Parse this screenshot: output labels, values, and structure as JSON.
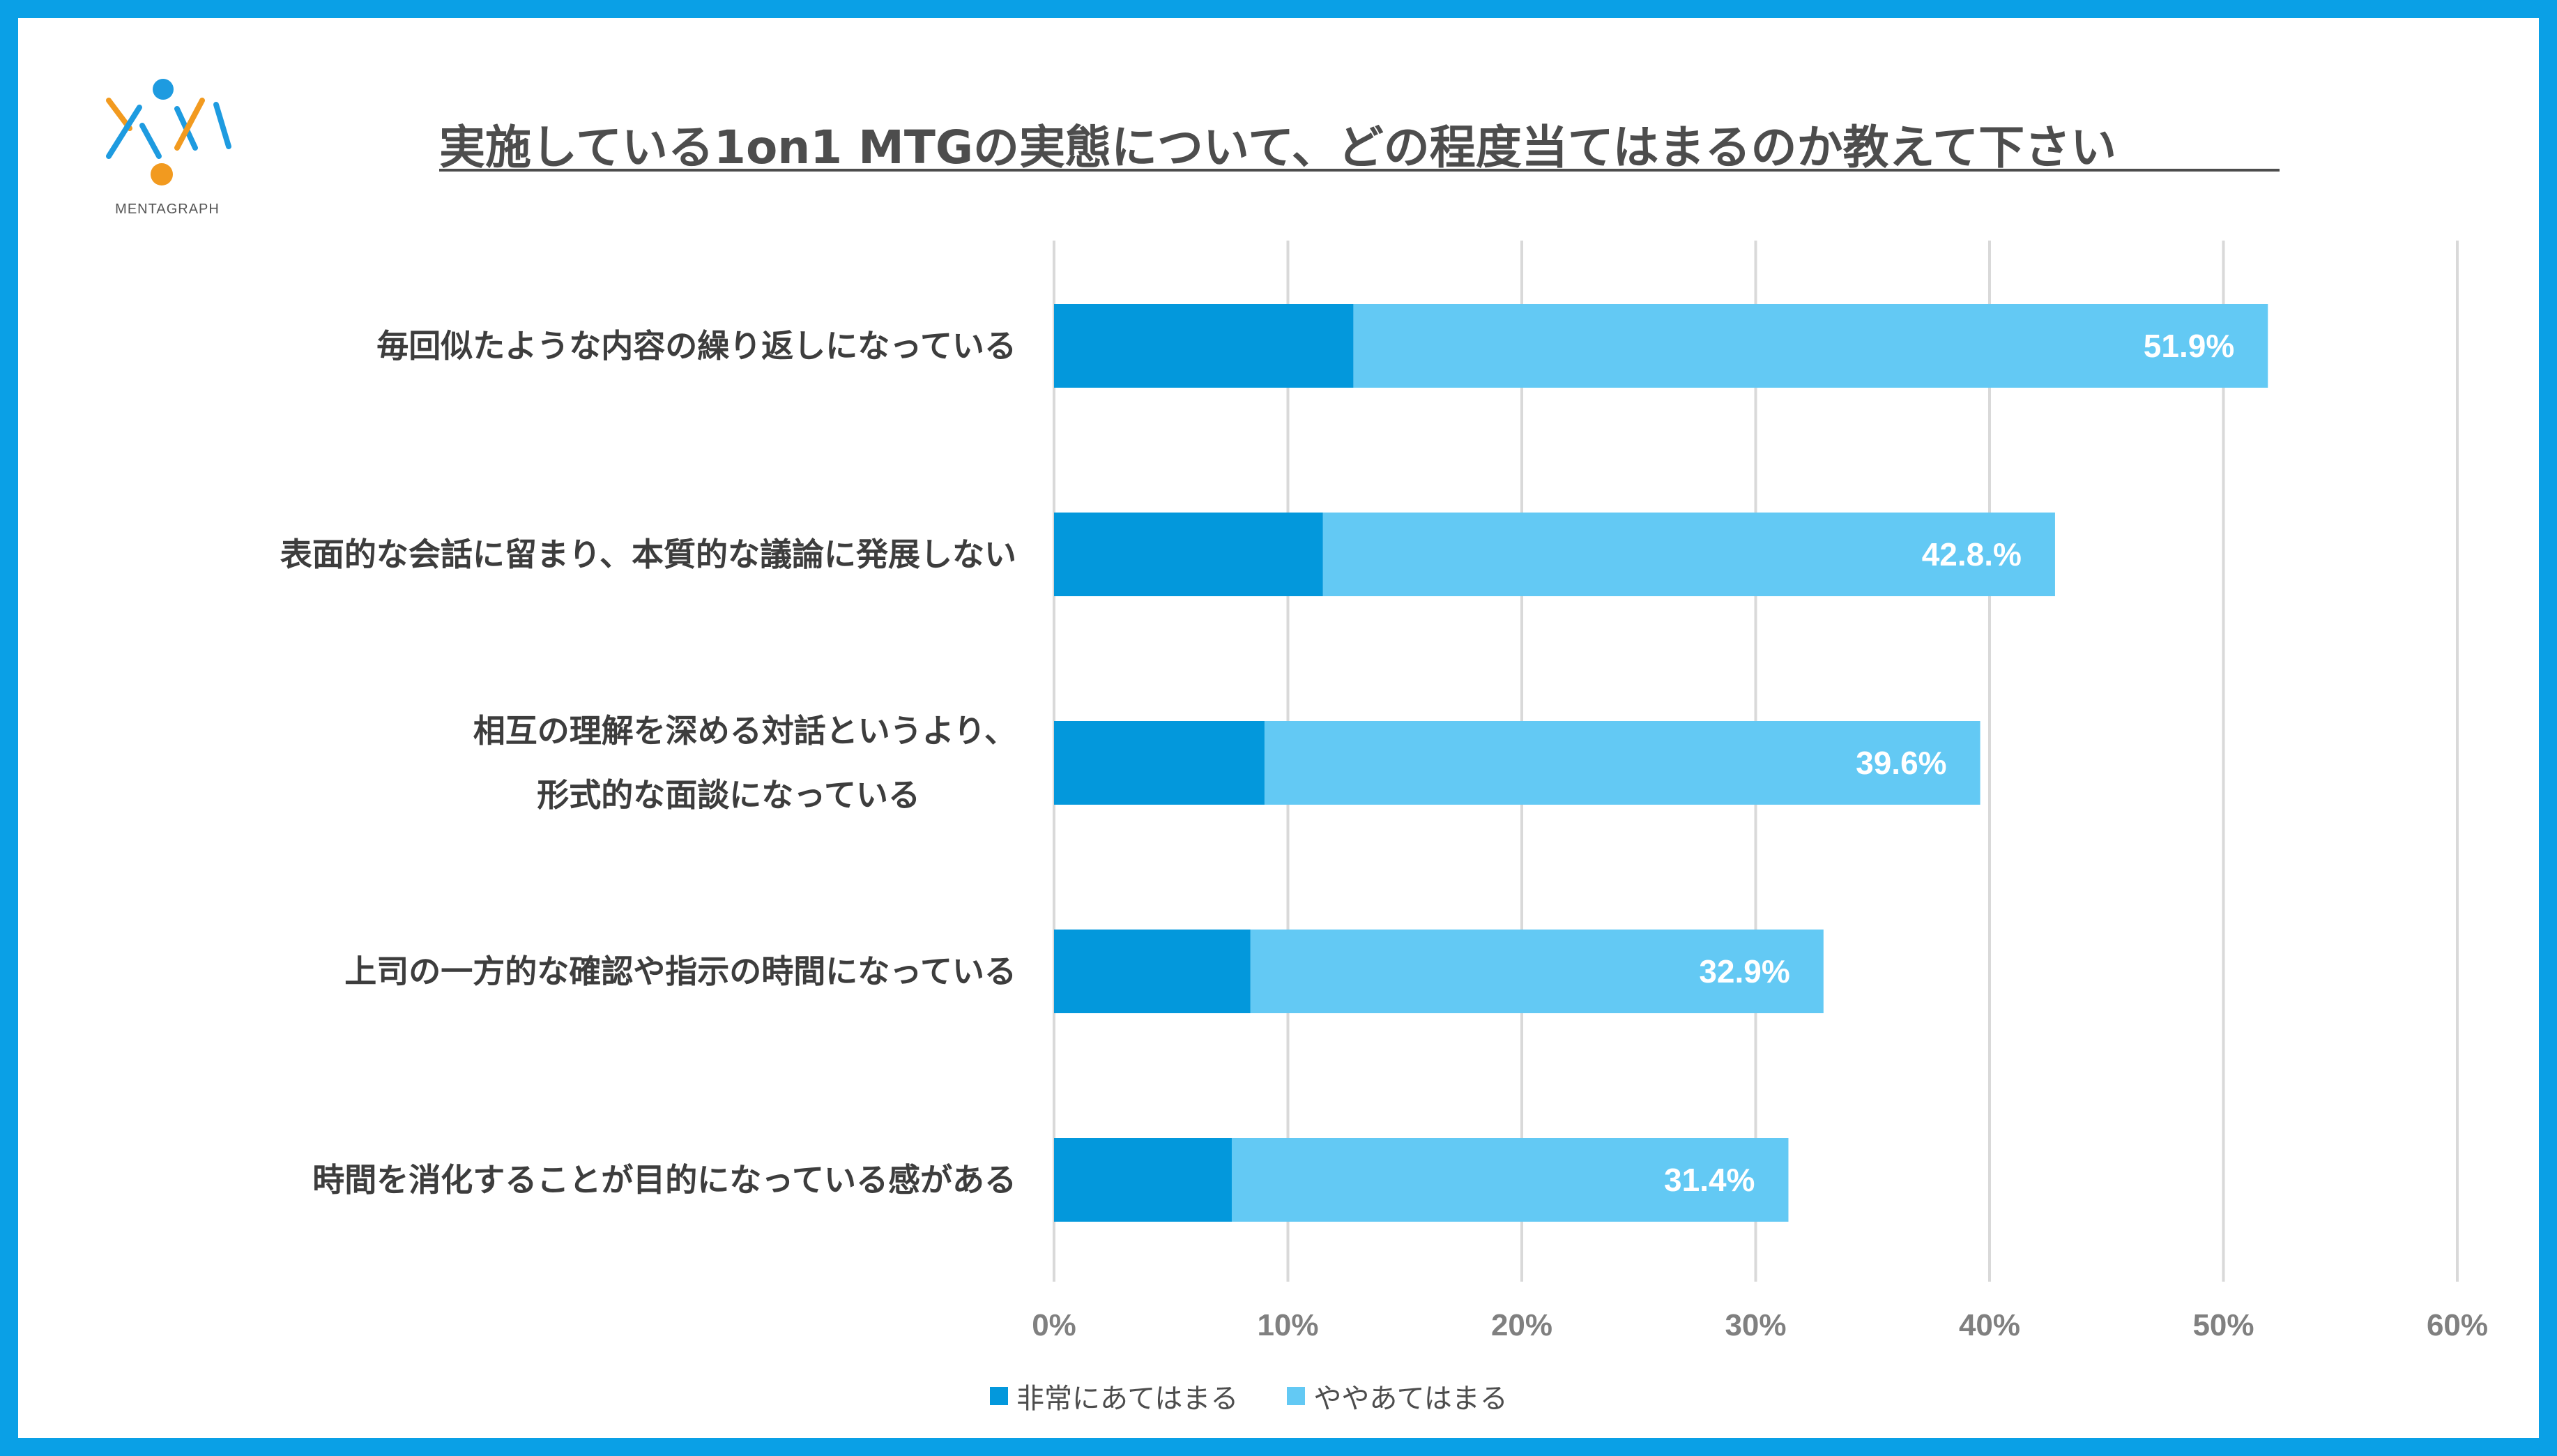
{
  "brand": {
    "name": "MENTAGRAPH"
  },
  "colors": {
    "frame": "#0aa0e6",
    "series1": "#0398dc",
    "series2": "#63c9f4",
    "grid": "#d9d9d9"
  },
  "chart_data": {
    "type": "bar",
    "orientation": "horizontal",
    "stacked": true,
    "title": "実施している1on1 MTGの実態について、どの程度当てはまるのか教えて下さい",
    "categories": [
      [
        "毎回似たような内容の繰り返しになっている"
      ],
      [
        "表面的な会話に留まり、本質的な議論に発展しない"
      ],
      [
        "相互の理解を深める対話というより、",
        "形式的な面談になっている"
      ],
      [
        "上司の一方的な確認や指示の時間になっている"
      ],
      [
        "時間を消化することが目的になっている感がある"
      ]
    ],
    "series": [
      {
        "name": "非常にあてはまる",
        "values": [
          12.8,
          11.5,
          9.0,
          8.4,
          7.6
        ]
      },
      {
        "name": "ややあてはまる",
        "values": [
          39.1,
          31.3,
          30.6,
          24.5,
          23.8
        ]
      }
    ],
    "totals": [
      51.9,
      42.8,
      39.6,
      32.9,
      31.4
    ],
    "data_labels": [
      "51.9%",
      "42.8.%",
      "39.6%",
      "32.9%",
      "31.4%"
    ],
    "xlim": [
      0,
      60
    ],
    "xticks": [
      0,
      10,
      20,
      30,
      40,
      50,
      60
    ],
    "xtick_labels": [
      "0%",
      "10%",
      "20%",
      "30%",
      "40%",
      "50%",
      "60%"
    ],
    "grid": true,
    "legend_position": "bottom"
  }
}
